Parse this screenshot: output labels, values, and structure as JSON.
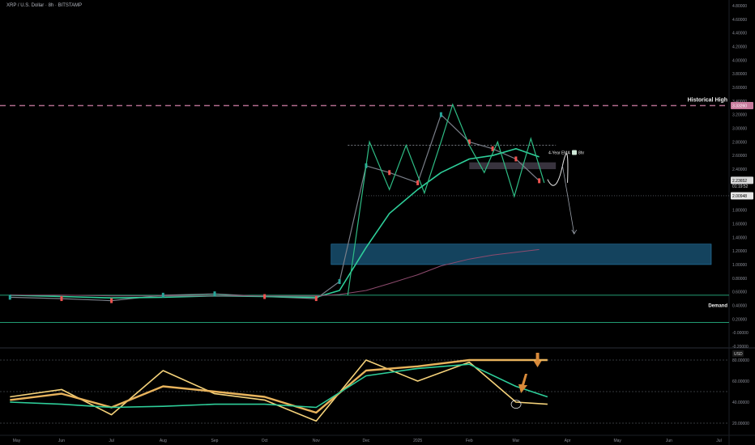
{
  "header": {
    "title": "XRP / U.S. Dollar · 8h · BITSTAMP"
  },
  "colors": {
    "bg": "#000000",
    "grid": "#1a1a1a",
    "axis_text": "#8c8f99",
    "up": "#26a69a",
    "down": "#ef5350",
    "ema": "#2ecf9a",
    "ema_long": "#8e4b6e",
    "zigzag": "#2ebd85",
    "historical_high": "#b06b8c",
    "demand_box": "#1c5f86",
    "osc_fast": "#f5d27a",
    "osc_slow": "#e8b35c",
    "osc_mid": "#2ecf9a",
    "annotation_arrow": "#d88a3a"
  },
  "price_axis": {
    "labels": [
      "4.80000",
      "4.60000",
      "4.40000",
      "4.20000",
      "4.00000",
      "3.80000",
      "3.60000",
      "3.40000",
      "3.20000",
      "3.00000",
      "2.80000",
      "2.60000",
      "2.40000",
      "2.20000",
      "2.00000",
      "1.80000",
      "1.60000",
      "1.40000",
      "1.20000",
      "1.00000",
      "0.80000",
      "0.60000",
      "0.40000",
      "0.20000",
      "-0.00000",
      "-0.20000"
    ],
    "current_price": "2.23652",
    "countdown": "01:19:52",
    "support_price": "2.00948",
    "historical_high_price": "3.33260"
  },
  "time_axis": {
    "labels": [
      "May",
      "Jun",
      "Jul",
      "Aug",
      "Sep",
      "Oct",
      "Nov",
      "Dec",
      "2025",
      "Feb",
      "Mar",
      "Apr",
      "May",
      "Jun",
      "Jul"
    ]
  },
  "annotations": {
    "historical_high": "Historical High",
    "ema_label": "4-Year EMA",
    "ema_label_suffix": "8hr",
    "demand": "Demand"
  },
  "oscillator": {
    "header": "USD",
    "axis_labels": [
      "80.00000",
      "60.00000",
      "40.00000",
      "20.00000"
    ]
  },
  "chart_data": [
    {
      "type": "line",
      "title": "XRP / U.S. Dollar · 8h · BITSTAMP",
      "x": [
        "2024-05",
        "2024-06",
        "2024-07",
        "2024-08",
        "2024-09",
        "2024-10",
        "2024-11-01",
        "2024-11-15",
        "2024-12-01",
        "2024-12-15",
        "2025-01-01",
        "2025-01-15",
        "2025-02-01",
        "2025-02-15",
        "2025-03-01",
        "2025-03-15"
      ],
      "series": [
        {
          "name": "price",
          "values": [
            0.52,
            0.5,
            0.47,
            0.55,
            0.57,
            0.53,
            0.5,
            0.75,
            2.45,
            2.35,
            2.2,
            3.2,
            2.8,
            2.7,
            2.55,
            2.23
          ]
        },
        {
          "name": "4-Year EMA",
          "values": [
            0.55,
            0.53,
            0.51,
            0.52,
            0.54,
            0.53,
            0.52,
            0.62,
            1.25,
            1.75,
            2.1,
            2.35,
            2.55,
            2.6,
            2.7,
            2.58
          ]
        },
        {
          "name": "long EMA",
          "values": [
            0.55,
            0.55,
            0.54,
            0.54,
            0.54,
            0.54,
            0.54,
            0.56,
            0.62,
            0.72,
            0.85,
            0.98,
            1.08,
            1.14,
            1.18,
            1.22
          ]
        }
      ],
      "ylim": [
        -0.2,
        4.8
      ],
      "levels": {
        "historical_high": 3.3326,
        "resistance": 2.75,
        "support": 2.00948,
        "demand": 0.15,
        "base": 0.55
      },
      "zones": [
        {
          "label": "",
          "y": [
            1.0,
            1.3
          ],
          "x": [
            "2024-11-10",
            "2025-07"
          ]
        },
        {
          "label": "",
          "y": [
            2.4,
            2.5
          ],
          "x": [
            "2025-02-01",
            "2025-03-25"
          ]
        }
      ],
      "grid": false
    },
    {
      "type": "line",
      "title": "",
      "x": [
        "2024-05",
        "2024-06",
        "2024-07",
        "2024-08",
        "2024-09",
        "2024-10",
        "2024-11",
        "2024-12",
        "2025-01",
        "2025-02",
        "2025-03",
        "2025-03-20"
      ],
      "series": [
        {
          "name": "fast",
          "values": [
            45,
            52,
            28,
            70,
            48,
            42,
            22,
            80,
            60,
            78,
            40,
            38
          ]
        },
        {
          "name": "slow",
          "values": [
            42,
            48,
            35,
            55,
            50,
            45,
            30,
            70,
            74,
            80,
            80,
            80
          ]
        },
        {
          "name": "mid",
          "values": [
            40,
            38,
            35,
            36,
            38,
            38,
            35,
            65,
            72,
            76,
            55,
            45
          ]
        }
      ],
      "ylim": [
        10,
        90
      ],
      "levels": {
        "upper": 80,
        "middle": 50,
        "lower": 20
      },
      "grid": false
    }
  ]
}
